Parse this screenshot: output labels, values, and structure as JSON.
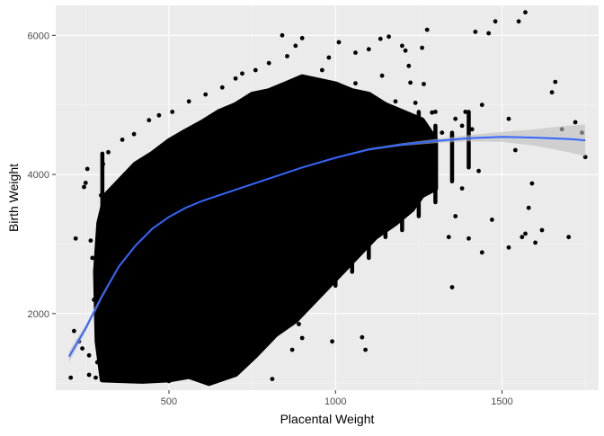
{
  "chart_data": {
    "type": "scatter",
    "title": "",
    "xlabel": "Placental Weight",
    "ylabel": "Birth Weight",
    "xlim": [
      160,
      1790
    ],
    "ylim": [
      900,
      6430
    ],
    "x_ticks": [
      500,
      1000,
      1500
    ],
    "y_ticks": [
      2000,
      4000,
      6000
    ],
    "x_tick_labels": [
      "500",
      "1000",
      "1500"
    ],
    "y_tick_labels": [
      "2000",
      "4000",
      "6000"
    ],
    "grid": true,
    "legend": "none",
    "colors": {
      "panel_background": "#ebebeb",
      "grid_major": "#ffffff",
      "grid_minor": "#f5f5f5",
      "points": "#000000",
      "smooth_line": "#3366ff",
      "confidence_band": "#bdbdbd"
    },
    "dense_cloud": {
      "description_points": [
        [
          300,
          1500
        ],
        [
          300,
          3500
        ],
        [
          400,
          1100
        ],
        [
          450,
          3900
        ],
        [
          600,
          1500
        ],
        [
          650,
          4500
        ],
        [
          800,
          2100
        ],
        [
          850,
          5100
        ],
        [
          1000,
          2600
        ],
        [
          1050,
          4800
        ],
        [
          1150,
          3300
        ],
        [
          1200,
          4600
        ],
        [
          1300,
          3800
        ],
        [
          1300,
          4400
        ],
        [
          1100,
          4300
        ]
      ]
    },
    "points": [
      [
        205,
        1080
      ],
      [
        215,
        1750
      ],
      [
        220,
        3080
      ],
      [
        230,
        1600
      ],
      [
        240,
        1500
      ],
      [
        245,
        3820
      ],
      [
        250,
        3880
      ],
      [
        255,
        4080
      ],
      [
        260,
        1120
      ],
      [
        265,
        3050
      ],
      [
        270,
        2800
      ],
      [
        280,
        1080
      ],
      [
        285,
        1300
      ],
      [
        290,
        1400
      ],
      [
        300,
        1090
      ],
      [
        320,
        1250
      ],
      [
        260,
        1400
      ],
      [
        275,
        2200
      ],
      [
        292,
        3200
      ],
      [
        296,
        3700
      ],
      [
        302,
        4150
      ],
      [
        318,
        4320
      ],
      [
        340,
        1050
      ],
      [
        380,
        1030
      ],
      [
        420,
        1080
      ],
      [
        360,
        4500
      ],
      [
        395,
        4580
      ],
      [
        440,
        4780
      ],
      [
        470,
        4850
      ],
      [
        510,
        4900
      ],
      [
        560,
        5050
      ],
      [
        610,
        5150
      ],
      [
        660,
        5250
      ],
      [
        700,
        5380
      ],
      [
        760,
        5500
      ],
      [
        800,
        5600
      ],
      [
        855,
        5700
      ],
      [
        880,
        5850
      ],
      [
        900,
        5960
      ],
      [
        980,
        5680
      ],
      [
        1010,
        5900
      ],
      [
        1060,
        5750
      ],
      [
        1100,
        5800
      ],
      [
        1135,
        5950
      ],
      [
        1160,
        5980
      ],
      [
        1200,
        5850
      ],
      [
        1210,
        5780
      ],
      [
        1220,
        5560
      ],
      [
        1225,
        5320
      ],
      [
        1260,
        5820
      ],
      [
        1265,
        5300
      ],
      [
        1275,
        6080
      ],
      [
        1300,
        4900
      ],
      [
        1360,
        4800
      ],
      [
        1380,
        4700
      ],
      [
        1390,
        4900
      ],
      [
        1410,
        4650
      ],
      [
        1440,
        5000
      ],
      [
        1460,
        6030
      ],
      [
        1480,
        6200
      ],
      [
        1520,
        4800
      ],
      [
        1540,
        4350
      ],
      [
        1560,
        3100
      ],
      [
        1570,
        3150
      ],
      [
        1580,
        3520
      ],
      [
        1600,
        3020
      ],
      [
        1620,
        3200
      ],
      [
        1650,
        5180
      ],
      [
        1660,
        5330
      ],
      [
        1680,
        4650
      ],
      [
        1700,
        3100
      ],
      [
        1720,
        4750
      ],
      [
        1740,
        4600
      ],
      [
        1750,
        4250
      ],
      [
        1550,
        6200
      ],
      [
        1570,
        6330
      ],
      [
        1470,
        3350
      ],
      [
        1440,
        2880
      ],
      [
        1520,
        2950
      ],
      [
        1590,
        3870
      ],
      [
        1400,
        3080
      ],
      [
        1350,
        2380
      ],
      [
        1430,
        4050
      ],
      [
        1420,
        6050
      ],
      [
        960,
        5500
      ],
      [
        840,
        6000
      ],
      [
        720,
        5450
      ],
      [
        990,
        1600
      ],
      [
        1080,
        1660
      ],
      [
        1090,
        1480
      ],
      [
        900,
        1650
      ],
      [
        890,
        1850
      ],
      [
        870,
        1480
      ],
      [
        810,
        1060
      ],
      [
        760,
        1520
      ],
      [
        740,
        1900
      ],
      [
        700,
        1150
      ],
      [
        620,
        1000
      ],
      [
        670,
        1250
      ],
      [
        650,
        1500
      ],
      [
        720,
        1800
      ],
      [
        560,
        1200
      ],
      [
        500,
        1030
      ],
      [
        480,
        1150
      ],
      [
        980,
        5320
      ],
      [
        1030,
        5200
      ],
      [
        1060,
        5310
      ],
      [
        1140,
        5420
      ],
      [
        1180,
        5050
      ],
      [
        1240,
        5030
      ],
      [
        1290,
        4890
      ],
      [
        1320,
        4600
      ],
      [
        1350,
        4550
      ],
      [
        1380,
        3800
      ],
      [
        1360,
        3400
      ],
      [
        1340,
        3100
      ]
    ],
    "smooth_curve": {
      "x": [
        200,
        250,
        300,
        350,
        400,
        450,
        500,
        550,
        600,
        700,
        800,
        900,
        1000,
        1100,
        1200,
        1300,
        1400,
        1500,
        1600,
        1700,
        1750
      ],
      "y": [
        1380,
        1790,
        2260,
        2680,
        2980,
        3220,
        3390,
        3520,
        3620,
        3780,
        3940,
        4100,
        4240,
        4360,
        4430,
        4480,
        4520,
        4540,
        4530,
        4510,
        4490
      ],
      "upper": [
        1460,
        1840,
        2290,
        2700,
        2995,
        3232,
        3400,
        3530,
        3630,
        3790,
        3950,
        4110,
        4250,
        4375,
        4450,
        4510,
        4565,
        4610,
        4650,
        4700,
        4720
      ],
      "lower": [
        1300,
        1740,
        2230,
        2660,
        2965,
        3208,
        3380,
        3510,
        3610,
        3770,
        3930,
        4090,
        4230,
        4345,
        4410,
        4450,
        4475,
        4470,
        4410,
        4320,
        4260
      ]
    }
  }
}
